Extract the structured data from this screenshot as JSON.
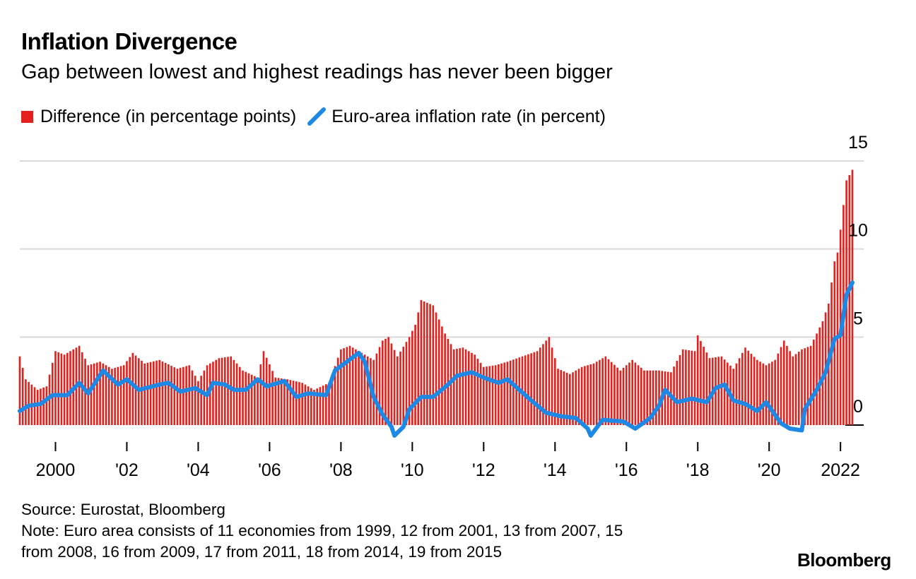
{
  "header": {
    "title": "Inflation Divergence",
    "subtitle": "Gap between lowest and highest readings has never been bigger"
  },
  "legend": {
    "items": [
      {
        "label": "Difference (in percentage points)",
        "color": "#e3201b",
        "shape": "square"
      },
      {
        "label": "Euro-area inflation rate (in percent)",
        "color": "#1e88e5",
        "shape": "line"
      }
    ]
  },
  "footer": {
    "source": "Source: Eurostat, Bloomberg",
    "note_line1": "Note: Euro area consists of 11 economies from 1999, 12 from 2001, 13 from 2007, 15",
    "note_line2": "from 2008, 16 from 2009, 17 from 2011, 18 from 2014, 19 from 2015",
    "brand": "Bloomberg"
  },
  "chart_data": {
    "type": "bar+line",
    "x_start": "1999-01",
    "x_end": "2022-05",
    "frequency": "monthly",
    "ylim": [
      -1,
      15
    ],
    "y_ticks": [
      0,
      5,
      10,
      15
    ],
    "x_ticks": [
      {
        "date": "2000-01",
        "label": "2000"
      },
      {
        "date": "2002-01",
        "label": "'02"
      },
      {
        "date": "2004-01",
        "label": "'04"
      },
      {
        "date": "2006-01",
        "label": "'06"
      },
      {
        "date": "2008-01",
        "label": "'08"
      },
      {
        "date": "2010-01",
        "label": "'10"
      },
      {
        "date": "2012-01",
        "label": "'12"
      },
      {
        "date": "2014-01",
        "label": "'14"
      },
      {
        "date": "2016-01",
        "label": "'16"
      },
      {
        "date": "2018-01",
        "label": "'18"
      },
      {
        "date": "2020-01",
        "label": "'20"
      },
      {
        "date": "2022-01",
        "label": "2022"
      }
    ],
    "y_axis_side": "right",
    "grid": true,
    "legend_position": "top-left",
    "series": [
      {
        "name": "Difference (in percentage points)",
        "kind": "bar",
        "color": "#e3201b",
        "points": [
          [
            "1999-01",
            3.9
          ],
          [
            "1999-03",
            2.6
          ],
          [
            "1999-07",
            2.0
          ],
          [
            "1999-10",
            2.2
          ],
          [
            "2000-01",
            4.2
          ],
          [
            "2000-04",
            4.0
          ],
          [
            "2000-09",
            4.5
          ],
          [
            "2000-12",
            3.4
          ],
          [
            "2001-04",
            3.6
          ],
          [
            "2001-08",
            3.2
          ],
          [
            "2001-12",
            3.4
          ],
          [
            "2002-03",
            4.1
          ],
          [
            "2002-07",
            3.5
          ],
          [
            "2002-12",
            3.7
          ],
          [
            "2003-06",
            3.2
          ],
          [
            "2003-10",
            3.4
          ],
          [
            "2004-01",
            2.5
          ],
          [
            "2004-04",
            3.4
          ],
          [
            "2004-08",
            3.8
          ],
          [
            "2004-12",
            3.9
          ],
          [
            "2005-04",
            3.1
          ],
          [
            "2005-09",
            2.7
          ],
          [
            "2005-11",
            4.2
          ],
          [
            "2006-03",
            2.7
          ],
          [
            "2006-07",
            2.6
          ],
          [
            "2006-12",
            2.4
          ],
          [
            "2007-04",
            2.0
          ],
          [
            "2007-09",
            2.4
          ],
          [
            "2008-01",
            4.3
          ],
          [
            "2008-04",
            4.5
          ],
          [
            "2008-08",
            4.1
          ],
          [
            "2008-12",
            3.7
          ],
          [
            "2009-03",
            4.8
          ],
          [
            "2009-05",
            5.0
          ],
          [
            "2009-08",
            3.9
          ],
          [
            "2009-12",
            5.0
          ],
          [
            "2010-02",
            5.7
          ],
          [
            "2010-04",
            7.1
          ],
          [
            "2010-08",
            6.8
          ],
          [
            "2010-12",
            5.2
          ],
          [
            "2011-03",
            4.3
          ],
          [
            "2011-06",
            4.4
          ],
          [
            "2011-10",
            4.0
          ],
          [
            "2012-01",
            3.3
          ],
          [
            "2012-05",
            3.4
          ],
          [
            "2012-09",
            3.6
          ],
          [
            "2013-02",
            3.9
          ],
          [
            "2013-07",
            4.2
          ],
          [
            "2013-11",
            5.0
          ],
          [
            "2014-02",
            3.2
          ],
          [
            "2014-06",
            2.9
          ],
          [
            "2014-10",
            3.3
          ],
          [
            "2015-02",
            3.5
          ],
          [
            "2015-06",
            3.9
          ],
          [
            "2015-11",
            3.1
          ],
          [
            "2016-03",
            3.7
          ],
          [
            "2016-07",
            3.1
          ],
          [
            "2016-12",
            3.1
          ],
          [
            "2017-04",
            3.0
          ],
          [
            "2017-08",
            4.3
          ],
          [
            "2017-12",
            4.2
          ],
          [
            "2018-01",
            5.1
          ],
          [
            "2018-05",
            3.8
          ],
          [
            "2018-09",
            3.9
          ],
          [
            "2019-01",
            3.2
          ],
          [
            "2019-05",
            4.4
          ],
          [
            "2019-09",
            3.7
          ],
          [
            "2019-12",
            3.4
          ],
          [
            "2020-03",
            3.7
          ],
          [
            "2020-06",
            4.8
          ],
          [
            "2020-09",
            3.9
          ],
          [
            "2020-12",
            4.3
          ],
          [
            "2021-03",
            4.5
          ],
          [
            "2021-05",
            5.2
          ],
          [
            "2021-07",
            5.9
          ],
          [
            "2021-09",
            6.9
          ],
          [
            "2021-11",
            9.3
          ],
          [
            "2021-12",
            9.8
          ],
          [
            "2022-01",
            11.1
          ],
          [
            "2022-03",
            13.9
          ],
          [
            "2022-05",
            14.5
          ]
        ]
      },
      {
        "name": "Euro-area inflation rate (in percent)",
        "kind": "line",
        "color": "#1e88e5",
        "points": [
          [
            "1999-01",
            0.8
          ],
          [
            "1999-04",
            1.1
          ],
          [
            "1999-08",
            1.2
          ],
          [
            "1999-12",
            1.7
          ],
          [
            "2000-05",
            1.7
          ],
          [
            "2000-09",
            2.4
          ],
          [
            "2000-12",
            1.8
          ],
          [
            "2001-05",
            3.1
          ],
          [
            "2001-10",
            2.3
          ],
          [
            "2002-01",
            2.6
          ],
          [
            "2002-05",
            2.0
          ],
          [
            "2002-12",
            2.3
          ],
          [
            "2003-03",
            2.4
          ],
          [
            "2003-07",
            1.9
          ],
          [
            "2003-12",
            2.1
          ],
          [
            "2004-04",
            1.7
          ],
          [
            "2004-06",
            2.4
          ],
          [
            "2004-10",
            2.3
          ],
          [
            "2005-01",
            2.0
          ],
          [
            "2005-05",
            2.0
          ],
          [
            "2005-09",
            2.6
          ],
          [
            "2005-12",
            2.2
          ],
          [
            "2006-06",
            2.5
          ],
          [
            "2006-10",
            1.6
          ],
          [
            "2007-02",
            1.8
          ],
          [
            "2007-08",
            1.7
          ],
          [
            "2007-11",
            3.1
          ],
          [
            "2008-03",
            3.6
          ],
          [
            "2008-07",
            4.1
          ],
          [
            "2008-09",
            3.6
          ],
          [
            "2008-12",
            1.6
          ],
          [
            "2009-03",
            0.6
          ],
          [
            "2009-06",
            -0.1
          ],
          [
            "2009-07",
            -0.6
          ],
          [
            "2009-10",
            -0.1
          ],
          [
            "2009-12",
            0.9
          ],
          [
            "2010-04",
            1.6
          ],
          [
            "2010-08",
            1.6
          ],
          [
            "2011-01",
            2.3
          ],
          [
            "2011-04",
            2.8
          ],
          [
            "2011-09",
            3.0
          ],
          [
            "2012-01",
            2.7
          ],
          [
            "2012-06",
            2.4
          ],
          [
            "2012-09",
            2.6
          ],
          [
            "2013-01",
            2.0
          ],
          [
            "2013-05",
            1.4
          ],
          [
            "2013-10",
            0.7
          ],
          [
            "2014-03",
            0.5
          ],
          [
            "2014-08",
            0.4
          ],
          [
            "2014-12",
            -0.2
          ],
          [
            "2015-01",
            -0.6
          ],
          [
            "2015-05",
            0.3
          ],
          [
            "2015-12",
            0.2
          ],
          [
            "2016-04",
            -0.2
          ],
          [
            "2016-09",
            0.4
          ],
          [
            "2016-12",
            1.1
          ],
          [
            "2017-02",
            2.0
          ],
          [
            "2017-06",
            1.3
          ],
          [
            "2017-11",
            1.5
          ],
          [
            "2018-04",
            1.3
          ],
          [
            "2018-07",
            2.1
          ],
          [
            "2018-10",
            2.3
          ],
          [
            "2019-01",
            1.4
          ],
          [
            "2019-05",
            1.2
          ],
          [
            "2019-09",
            0.8
          ],
          [
            "2019-12",
            1.3
          ],
          [
            "2020-05",
            0.1
          ],
          [
            "2020-08",
            -0.2
          ],
          [
            "2020-12",
            -0.3
          ],
          [
            "2021-01",
            0.9
          ],
          [
            "2021-05",
            2.0
          ],
          [
            "2021-08",
            3.0
          ],
          [
            "2021-11",
            4.9
          ],
          [
            "2021-12",
            5.0
          ],
          [
            "2022-01",
            5.1
          ],
          [
            "2022-03",
            7.4
          ],
          [
            "2022-05",
            8.1
          ]
        ]
      }
    ]
  }
}
